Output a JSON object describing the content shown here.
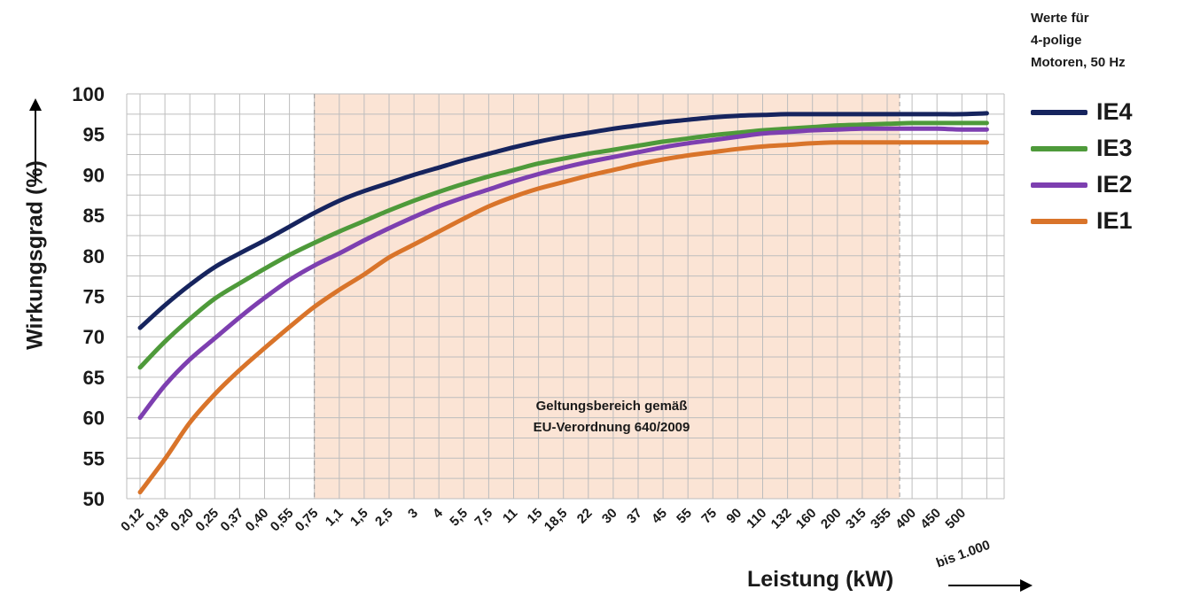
{
  "note": [
    "Werte für",
    "4-polige",
    "Motoren, 50 Hz"
  ],
  "region_label": [
    "Geltungsbereich gemäß",
    "EU-Verordnung 640/2009"
  ],
  "colors": {
    "IE4": "#16245e",
    "IE3": "#4e9a3a",
    "IE2": "#7d3fb0",
    "IE1": "#d9742a",
    "region": "#fbe4d5",
    "grid": "#bdbdbd"
  },
  "chart_data": {
    "type": "line",
    "title": "",
    "xlabel": "Leistung (kW)",
    "ylabel": "Wirkungsgrad (%)",
    "ylim": [
      50,
      100
    ],
    "yticks": [
      50,
      55,
      60,
      65,
      70,
      75,
      80,
      85,
      90,
      95,
      100
    ],
    "categories": [
      "0,12",
      "0,18",
      "0,20",
      "0,25",
      "0,37",
      "0,40",
      "0,55",
      "0,75",
      "1,1",
      "1,5",
      "2,5",
      "3",
      "4",
      "5,5",
      "7,5",
      "11",
      "15",
      "18,5",
      "22",
      "30",
      "37",
      "45",
      "55",
      "75",
      "90",
      "110",
      "132",
      "160",
      "200",
      "315",
      "355",
      "400",
      "450",
      "500",
      "bis 1.000"
    ],
    "grid": true,
    "legend_position": "right",
    "shaded_region": {
      "from": "0,75",
      "to": "355",
      "label": "Geltungsbereich gemäß EU-Verordnung 640/2009"
    },
    "series": [
      {
        "name": "IE4",
        "values": [
          71.1,
          73.9,
          76.4,
          78.6,
          80.3,
          81.9,
          83.6,
          85.3,
          86.8,
          88.0,
          89.0,
          90.0,
          90.9,
          91.8,
          92.6,
          93.4,
          94.1,
          94.7,
          95.2,
          95.7,
          96.1,
          96.5,
          96.8,
          97.1,
          97.3,
          97.4,
          97.5,
          97.5,
          97.5,
          97.5,
          97.5,
          97.5,
          97.5,
          97.5,
          97.6
        ]
      },
      {
        "name": "IE3",
        "values": [
          66.2,
          69.4,
          72.2,
          74.7,
          76.6,
          78.4,
          80.1,
          81.6,
          83.0,
          84.3,
          85.6,
          86.8,
          87.9,
          88.9,
          89.8,
          90.6,
          91.4,
          92.0,
          92.6,
          93.1,
          93.6,
          94.1,
          94.5,
          94.9,
          95.2,
          95.5,
          95.7,
          95.9,
          96.1,
          96.2,
          96.3,
          96.4,
          96.4,
          96.4,
          96.4
        ]
      },
      {
        "name": "IE2",
        "values": [
          60.0,
          64.0,
          67.2,
          69.8,
          72.4,
          74.8,
          77.0,
          78.8,
          80.3,
          81.9,
          83.4,
          84.8,
          86.1,
          87.2,
          88.2,
          89.2,
          90.1,
          90.9,
          91.6,
          92.2,
          92.8,
          93.4,
          93.9,
          94.3,
          94.7,
          95.1,
          95.3,
          95.5,
          95.6,
          95.7,
          95.7,
          95.7,
          95.7,
          95.6,
          95.6
        ]
      },
      {
        "name": "IE1",
        "values": [
          50.8,
          54.9,
          59.4,
          62.9,
          65.9,
          68.6,
          71.2,
          73.7,
          75.8,
          77.7,
          79.8,
          81.4,
          83.0,
          84.6,
          86.1,
          87.3,
          88.3,
          89.1,
          89.9,
          90.6,
          91.3,
          91.9,
          92.4,
          92.8,
          93.2,
          93.5,
          93.7,
          93.9,
          94.0,
          94.0,
          94.0,
          94.0,
          94.0,
          94.0,
          94.0
        ]
      }
    ]
  }
}
